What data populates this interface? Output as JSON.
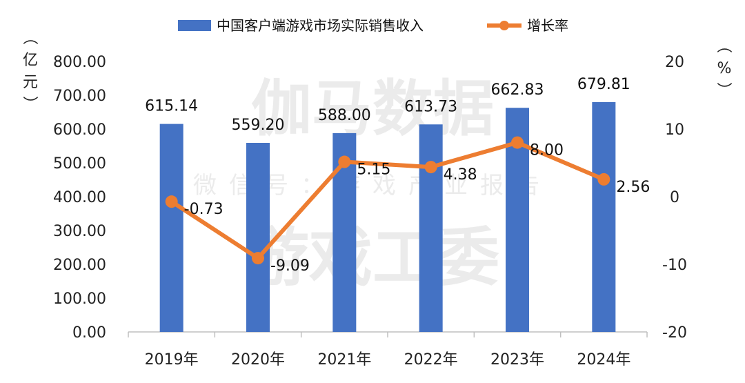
{
  "chart_data": {
    "type": "bar+line",
    "categories": [
      "2019年",
      "2020年",
      "2021年",
      "2022年",
      "2023年",
      "2024年"
    ],
    "series": [
      {
        "name": "中国客户端游戏市场实际销售收入",
        "type": "bar",
        "axis": "left",
        "values": [
          615.14,
          559.2,
          588.0,
          613.73,
          662.83,
          679.81
        ],
        "labels": [
          "615.14",
          "559.20",
          "588.00",
          "613.73",
          "662.83",
          "679.81"
        ],
        "color": "#4472c4"
      },
      {
        "name": "增长率",
        "type": "line",
        "axis": "right",
        "values": [
          -0.73,
          -9.09,
          5.15,
          4.38,
          8.0,
          2.56
        ],
        "labels": [
          "-0.73",
          "-9.09",
          "5.15",
          "4.38",
          "8.00",
          "2.56"
        ],
        "color": "#ed7d31"
      }
    ],
    "y_left": {
      "label": "（亿元）",
      "range": [
        0,
        800
      ],
      "ticks": [
        "0.00",
        "100.00",
        "200.00",
        "300.00",
        "400.00",
        "500.00",
        "600.00",
        "700.00",
        "800.00"
      ]
    },
    "y_right": {
      "label": "（%）",
      "range": [
        -20,
        20
      ],
      "ticks": [
        "-20",
        "-10",
        "0",
        "10",
        "20"
      ]
    },
    "grid": false,
    "legend": "top"
  },
  "watermark": {
    "line1": "伽马数据",
    "line2": "微信号：游戏产业报告",
    "line3": "游戏工委"
  }
}
